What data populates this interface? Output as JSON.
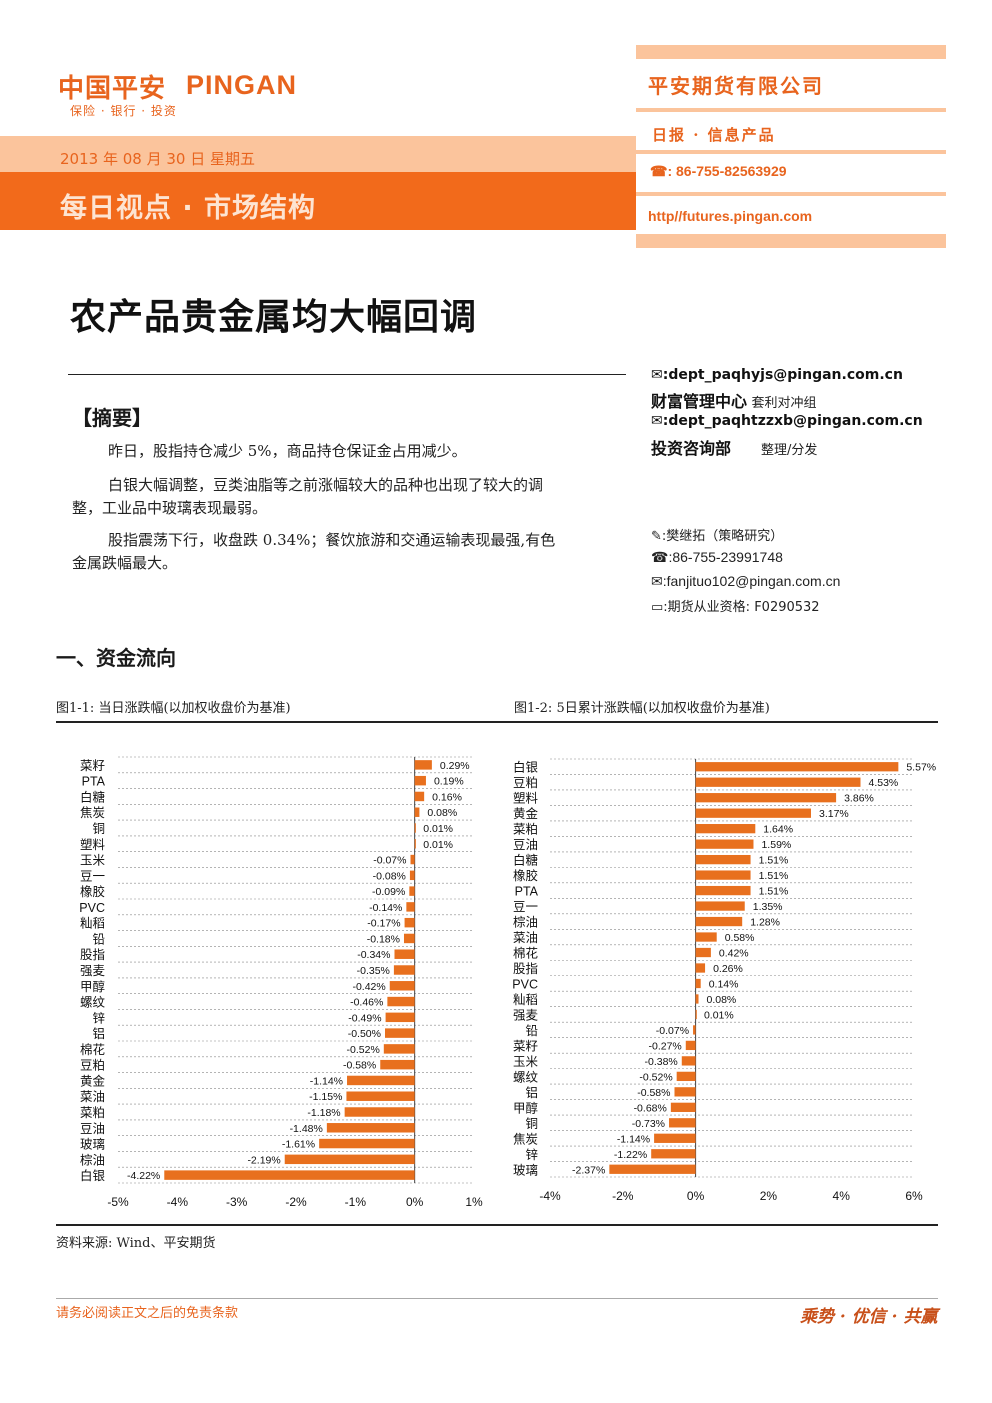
{
  "header": {
    "logo_cn": "中国平安",
    "logo_en": "PINGAN",
    "logo_sub": "保险 · 银行 · 投资",
    "date": "2013 年 08 月 30 日 星期五",
    "section": "每日视点 · 市场结构",
    "company": "平安期货有限公司",
    "daily": "日报 · 信息产品",
    "phone": "86-755-82563929",
    "url": "http//futures.pingan.com"
  },
  "title": "农产品贵金属均大幅回调",
  "contacts": {
    "email1": ":dept_paqhyjs@pingan.com.cn",
    "dept1": "财富管理中心",
    "team1": "套利对冲组",
    "email2": ":dept_paqhtzzxb@pingan.com.cn",
    "dept2": "投资咨询部",
    "role": "整理/分发",
    "author": ":樊继拓（策略研究）",
    "author_phone": ":86-755-23991748",
    "author_email": ":fanjituo102@pingan.com.cn",
    "license": ":期货从业资格: F0290532"
  },
  "summary": {
    "heading": "【摘要】",
    "p1": "昨日，股指持仓减少 5%，商品持仓保证金占用减少。",
    "p2a": "白银大幅调整，豆类油脂等之前涨幅较大的品种也出现了较大的调",
    "p2b": "整，工业品中玻璃表现最弱。",
    "p3a": "股指震荡下行，收盘跌 0.34%；餐饮旅游和交通运输表现最强,有色",
    "p3b": "金属跌幅最大。"
  },
  "section1": "一、资金流向",
  "fig1_caption": "图1-1: 当日涨跌幅(以加权收盘价为基准)",
  "fig2_caption": "图1-2: 5日累计涨跌幅(以加权收盘价为基准)",
  "source": "资料来源: Wind、平安期货",
  "footer": {
    "disclaimer": "请务必阅读正文之后的免责条款",
    "slogan": "乘势 · 优信 · 共赢"
  },
  "colors": {
    "accent": "#e8641e",
    "bar": "#e8701e",
    "band_light": "#fbc49c",
    "band_dark": "#f26a1b"
  },
  "chart_data": [
    {
      "type": "bar",
      "orientation": "horizontal",
      "title": "图1-1: 当日涨跌幅(以加权收盘价为基准)",
      "categories": [
        "菜籽",
        "PTA",
        "白糖",
        "焦炭",
        "铜",
        "塑料",
        "玉米",
        "豆一",
        "橡胶",
        "PVC",
        "籼稻",
        "铅",
        "股指",
        "强麦",
        "甲醇",
        "螺纹",
        "锌",
        "铝",
        "棉花",
        "豆粕",
        "黄金",
        "菜油",
        "菜粕",
        "豆油",
        "玻璃",
        "棕油",
        "白银"
      ],
      "values": [
        0.29,
        0.19,
        0.16,
        0.08,
        0.01,
        0.01,
        -0.07,
        -0.08,
        -0.09,
        -0.14,
        -0.17,
        -0.18,
        -0.34,
        -0.35,
        -0.42,
        -0.46,
        -0.49,
        -0.5,
        -0.52,
        -0.58,
        -1.14,
        -1.15,
        -1.18,
        -1.48,
        -1.61,
        -2.19,
        -4.22
      ],
      "labels": [
        "0.29%",
        "0.19%",
        "0.16%",
        "0.08%",
        "0.01%",
        "0.01%",
        "-0.07%",
        "-0.08%",
        "-0.09%",
        "-0.14%",
        "-0.17%",
        "-0.18%",
        "-0.34%",
        "-0.35%",
        "-0.42%",
        "-0.46%",
        "-0.49%",
        "-0.50%",
        "-0.52%",
        "-0.58%",
        "-1.14%",
        "-1.15%",
        "-1.18%",
        "-1.48%",
        "-1.61%",
        "-2.19%",
        "-4.22%"
      ],
      "xlim": [
        -5,
        1
      ],
      "ticks": [
        -5,
        -4,
        -3,
        -2,
        -1,
        0,
        1
      ],
      "tick_labels": [
        "-5%",
        "-4%",
        "-3%",
        "-2%",
        "-1%",
        "0%",
        "1%"
      ]
    },
    {
      "type": "bar",
      "orientation": "horizontal",
      "title": "图1-2: 5日累计涨跌幅(以加权收盘价为基准)",
      "categories": [
        "白银",
        "豆粕",
        "塑料",
        "黄金",
        "菜粕",
        "豆油",
        "白糖",
        "橡胶",
        "PTA",
        "豆一",
        "棕油",
        "菜油",
        "棉花",
        "股指",
        "PVC",
        "籼稻",
        "强麦",
        "铅",
        "菜籽",
        "玉米",
        "螺纹",
        "铝",
        "甲醇",
        "铜",
        "焦炭",
        "锌",
        "玻璃"
      ],
      "values": [
        5.57,
        4.53,
        3.86,
        3.17,
        1.64,
        1.59,
        1.51,
        1.51,
        1.51,
        1.35,
        1.28,
        0.58,
        0.42,
        0.26,
        0.14,
        0.08,
        0.01,
        -0.07,
        -0.27,
        -0.38,
        -0.52,
        -0.58,
        -0.68,
        -0.73,
        -1.14,
        -1.22,
        -2.37
      ],
      "labels": [
        "5.57%",
        "4.53%",
        "3.86%",
        "3.17%",
        "1.64%",
        "1.59%",
        "1.51%",
        "1.51%",
        "1.51%",
        "1.35%",
        "1.28%",
        "0.58%",
        "0.42%",
        "0.26%",
        "0.14%",
        "0.08%",
        "0.01%",
        "-0.07%",
        "-0.27%",
        "-0.38%",
        "-0.52%",
        "-0.58%",
        "-0.68%",
        "-0.73%",
        "-1.14%",
        "-1.22%",
        "-2.37%"
      ],
      "xlim": [
        -4,
        6
      ],
      "ticks": [
        -4,
        -2,
        0,
        2,
        4,
        6
      ],
      "tick_labels": [
        "-4%",
        "-2%",
        "0%",
        "2%",
        "4%",
        "6%"
      ]
    }
  ]
}
